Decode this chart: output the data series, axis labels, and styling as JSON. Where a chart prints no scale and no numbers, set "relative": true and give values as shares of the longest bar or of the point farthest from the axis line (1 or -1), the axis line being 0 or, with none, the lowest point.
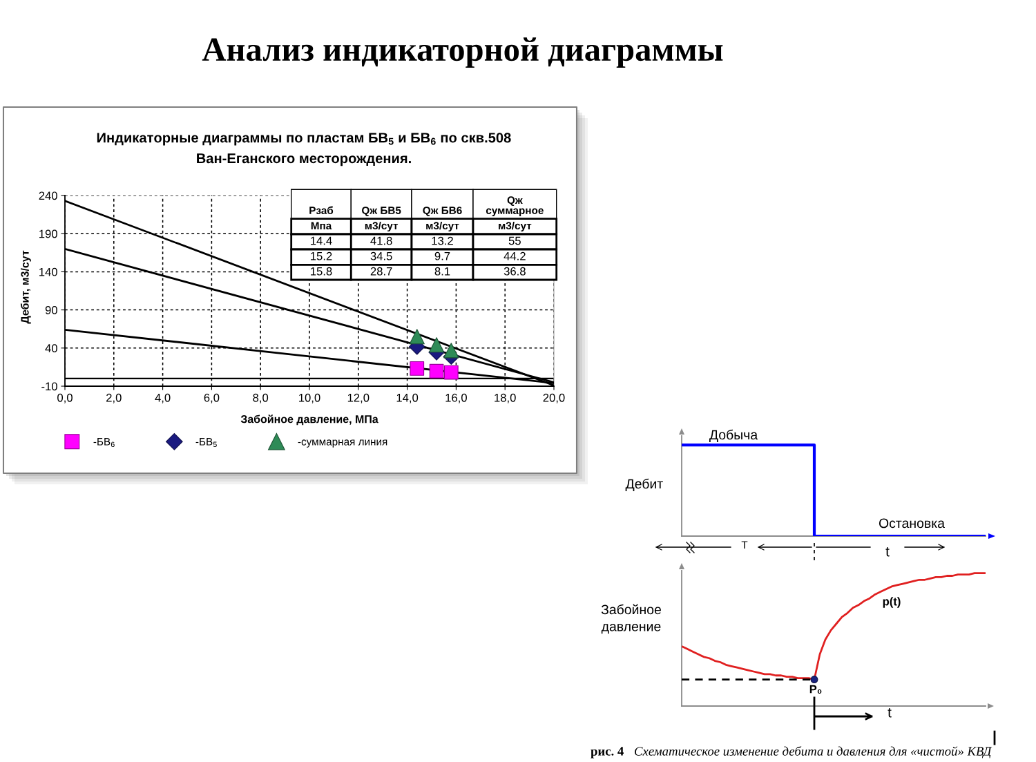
{
  "chart_data": [
    {
      "type": "line",
      "title": "Анализ индикаторной диаграммы",
      "subtitle": "Индикаторные диаграммы по пластам БВ$_{5}$ и БВ$_{6}$ по скв.508\nВан-Еганского месторождения.",
      "xlabel": "Забойное давление, МПа",
      "ylabel": "Дебит, м3/сут",
      "annotations": [
        "Рзаб",
        "Мпа",
        "Qж БВ5",
        "м3/сут",
        "Qж БВ6",
        "м3/сут",
        "Qж\nсуммарное",
        "м3/сут",
        "14.4",
        "41.8",
        "13.2",
        "55",
        "15.2",
        "34.5",
        "9.7",
        "44.2",
        "15.8",
        "28.7",
        "8.1",
        "36.8"
      ],
      "xlim": [
        0,
        20
      ],
      "xticks": [
        {
          "value": 0,
          "label": "0,0"
        },
        {
          "value": 2,
          "label": "2,0"
        },
        {
          "value": 4,
          "label": "4,0"
        },
        {
          "value": 6,
          "label": "6,0"
        },
        {
          "value": 8,
          "label": "8,0"
        },
        {
          "value": 10,
          "label": "10,0"
        },
        {
          "value": 12,
          "label": "12,0"
        },
        {
          "value": 14,
          "label": "14,0"
        },
        {
          "value": 16,
          "label": "16,0"
        },
        {
          "value": 18,
          "label": "18,0"
        },
        {
          "value": 20,
          "label": "20,0"
        }
      ],
      "ylim": [
        -10,
        240
      ],
      "yticks": [
        -10,
        40,
        90,
        140,
        190,
        240
      ],
      "grid": true,
      "legend": "bottom",
      "ref_lines": [
        {
          "axis": "y",
          "value": 0,
          "color": "#000000"
        }
      ],
      "series": [
        {
          "type": "line",
          "x": [
            0,
            20
          ],
          "values": [
            233,
            -9
          ],
          "color": "#000000",
          "marker": "none"
        },
        {
          "type": "line",
          "x": [
            0,
            20
          ],
          "values": [
            170,
            -5
          ],
          "color": "#000000",
          "marker": "none"
        },
        {
          "type": "line",
          "x": [
            0,
            20
          ],
          "values": [
            64,
            -6
          ],
          "color": "#000000",
          "marker": "none"
        },
        {
          "type": "scatter",
          "name": "-БВ$_{6}$",
          "x": [
            14.4,
            15.2,
            15.8
          ],
          "values": [
            13.2,
            9.7,
            8.1
          ],
          "color": "#ff00ff",
          "marker": "square"
        },
        {
          "type": "scatter",
          "name": "-БВ$_{5}$",
          "x": [
            14.4,
            15.2,
            15.8
          ],
          "values": [
            41.8,
            34.5,
            28.7
          ],
          "color": "#1a1a80",
          "marker": "diamond"
        },
        {
          "type": "scatter",
          "name": "-суммарная линия",
          "x": [
            14.4,
            15.2,
            15.8
          ],
          "values": [
            55,
            44.2,
            36.8
          ],
          "color": "#2e8b57",
          "marker": "triangle"
        }
      ]
    },
    {
      "type": "step",
      "relative": true,
      "ylabel": "Дебит",
      "categories": [
        null,
        null,
        null,
        null,
        null,
        null,
        null,
        null,
        null,
        null,
        null,
        null,
        null,
        null,
        null,
        null,
        null,
        null,
        null,
        null,
        null,
        null,
        null,
        null,
        null,
        null,
        null,
        null,
        null,
        null,
        null,
        null,
        null,
        null,
        null,
        null,
        null,
        null,
        null,
        null,
        null,
        null,
        null,
        null,
        null,
        null,
        null,
        null,
        null,
        null,
        null,
        null,
        null,
        null,
        null,
        null
      ],
      "annotations": [
        "Добыча",
        "Остановка",
        "T",
        "t"
      ],
      "series": [
        {
          "color": "#0000ff",
          "values": [
            1,
            1,
            1,
            1,
            1,
            1,
            1,
            1,
            1,
            1,
            1,
            1,
            1,
            1,
            1,
            1,
            1,
            1,
            1,
            1,
            1,
            1,
            1,
            1,
            0,
            0,
            0,
            0,
            0,
            0,
            0,
            0,
            0,
            0,
            0,
            0,
            0,
            0,
            0,
            0,
            0,
            0,
            0,
            0,
            0,
            0,
            0,
            0,
            0,
            0,
            0,
            0,
            0,
            0,
            0,
            0
          ]
        }
      ]
    },
    {
      "type": "line",
      "relative": true,
      "ylabel": "Забойное\nдавление",
      "categories": [
        null,
        null,
        null,
        null,
        null,
        null,
        null,
        null,
        null,
        null,
        null,
        null,
        null,
        null,
        null,
        null,
        null,
        null,
        null,
        null,
        null,
        null,
        null,
        null,
        null,
        null,
        null,
        null,
        null,
        null,
        null,
        null,
        null,
        null,
        null,
        null,
        null,
        null,
        null,
        null,
        null,
        null,
        null,
        null,
        null,
        null,
        null,
        null,
        null,
        null,
        null,
        null,
        null,
        null,
        null,
        null
      ],
      "annotations": [
        "p(t)",
        "P₀",
        "t",
        "рис. 4",
        "Схематическое изменение дебита и давления для «чистой» КВД"
      ],
      "series": [
        {
          "color": "#e02020",
          "values": [
            0.45,
            0.43,
            0.41,
            0.39,
            0.37,
            0.36,
            0.34,
            0.33,
            0.31,
            0.3,
            0.29,
            0.28,
            0.27,
            0.26,
            0.25,
            0.24,
            0.24,
            0.23,
            0.23,
            0.22,
            0.22,
            0.21,
            0.21,
            0.21,
            0.2,
            0.39,
            0.5,
            0.57,
            0.62,
            0.67,
            0.7,
            0.74,
            0.76,
            0.79,
            0.81,
            0.84,
            0.86,
            0.88,
            0.9,
            0.91,
            0.92,
            0.93,
            0.94,
            0.95,
            0.95,
            0.96,
            0.97,
            0.97,
            0.98,
            0.98,
            0.99,
            0.99,
            0.99,
            1,
            1,
            1
          ]
        },
        {
          "color": "#000000",
          "line_style": "dashed",
          "values": [
            0.2,
            0.2,
            0.2,
            0.2,
            0.2,
            0.2,
            0.2,
            0.2,
            0.2,
            0.2,
            0.2,
            0.2,
            0.2,
            0.2,
            0.2,
            0.2,
            0.2,
            0.2,
            0.2,
            0.2,
            0.2,
            0.2,
            0.2,
            0.2,
            0.2,
            null,
            null,
            null,
            null,
            null,
            null,
            null,
            null,
            null,
            null,
            null,
            null,
            null,
            null,
            null,
            null,
            null,
            null,
            null,
            null,
            null,
            null,
            null,
            null,
            null,
            null,
            null,
            null,
            null,
            null,
            null
          ]
        },
        {
          "type": "scatter",
          "marker": "circle",
          "color": "#1a237e",
          "values": [
            null,
            null,
            null,
            null,
            null,
            null,
            null,
            null,
            null,
            null,
            null,
            null,
            null,
            null,
            null,
            null,
            null,
            null,
            null,
            null,
            null,
            null,
            null,
            null,
            0.2,
            null,
            null,
            null,
            null,
            null,
            null,
            null,
            null,
            null,
            null,
            null,
            null,
            null,
            null,
            null,
            null,
            null,
            null,
            null,
            null,
            null,
            null,
            null,
            null,
            null,
            null,
            null,
            null,
            null,
            null,
            null
          ]
        }
      ]
    }
  ]
}
